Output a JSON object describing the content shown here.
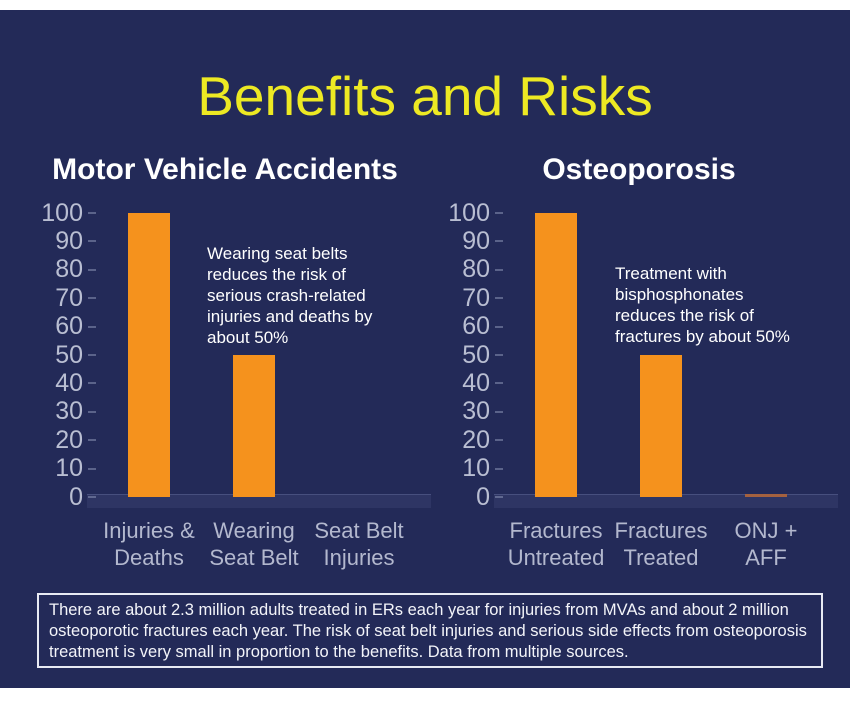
{
  "title": "Benefits and Risks",
  "colors": {
    "background": "#232A58",
    "page_margin": "#FFFFFF",
    "title_text": "#EDE923",
    "bar_orange": "#F5921D",
    "bar_muted": "#A4613F",
    "axis_text": "#B9BED2",
    "heading_text": "#FFFFFF",
    "footnote_border": "#E8EAF3"
  },
  "chart_data": [
    {
      "type": "bar",
      "title": "Motor Vehicle Accidents",
      "categories": [
        "Injuries &\nDeaths",
        "Wearing\nSeat Belt",
        "Seat Belt\nInjuries"
      ],
      "values": [
        100,
        50,
        0
      ],
      "bar_colors": [
        "#F5921D",
        "#F5921D",
        "#F5921D"
      ],
      "ylim": [
        0,
        100
      ],
      "yticks": [
        100,
        90,
        80,
        70,
        60,
        50,
        40,
        30,
        20,
        10,
        0
      ],
      "grid": "off",
      "legend": "none",
      "annotation": "Wearing seat belts\nreduces the risk of\nserious crash-related\ninjuries and deaths by\nabout 50%"
    },
    {
      "type": "bar",
      "title": "Osteoporosis",
      "categories": [
        "Fractures\nUntreated",
        "Fractures\nTreated",
        "ONJ +\nAFF"
      ],
      "values": [
        100,
        50,
        1
      ],
      "bar_colors": [
        "#F5921D",
        "#F5921D",
        "#A4613F"
      ],
      "ylim": [
        0,
        100
      ],
      "yticks": [
        100,
        90,
        80,
        70,
        60,
        50,
        40,
        30,
        20,
        10,
        0
      ],
      "grid": "off",
      "legend": "none",
      "annotation": "Treatment with\nbisphosphonates\nreduces the risk of\nfractures by about 50%"
    }
  ],
  "footnote": "There are about 2.3 million adults treated in ERs each year for injuries from MVAs and about 2 million osteoporotic fractures each year. The risk of seat belt injuries and serious side effects from osteoporosis treatment is very small in proportion to the benefits. Data from multiple sources."
}
